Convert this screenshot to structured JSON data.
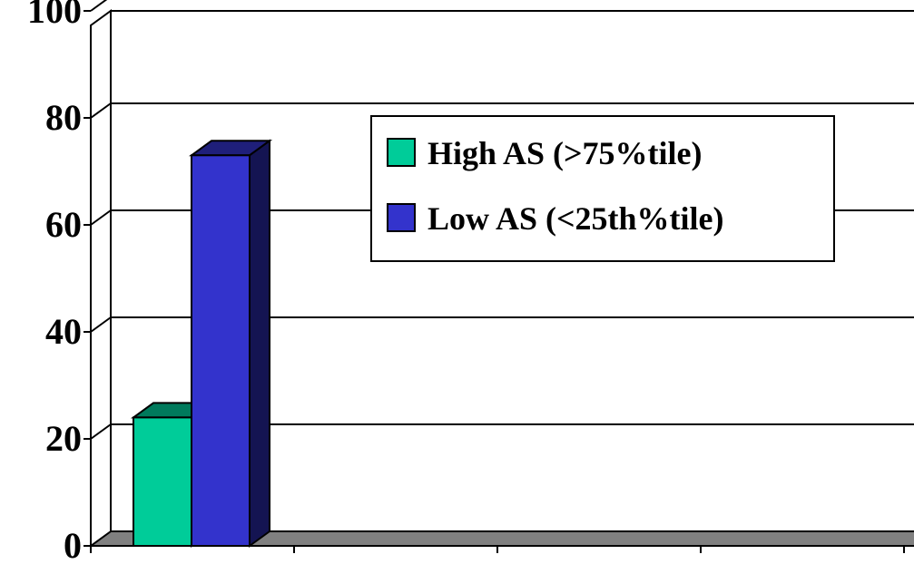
{
  "chart_data": {
    "type": "bar",
    "style": "3d-clustered-column",
    "categories": [
      ""
    ],
    "series": [
      {
        "name": "High AS (>75%tile)",
        "values": [
          24
        ],
        "color": "#00CC99"
      },
      {
        "name": "Low AS (<25th%tile)",
        "values": [
          73
        ],
        "color": "#3333CC"
      }
    ],
    "ylim": [
      0,
      100
    ],
    "yticks": [
      "0",
      "20",
      "40",
      "60",
      "80",
      "100"
    ],
    "grid": true,
    "legend": "top-center",
    "colors": {
      "floor": "#808080",
      "gridline": "#000000"
    }
  }
}
